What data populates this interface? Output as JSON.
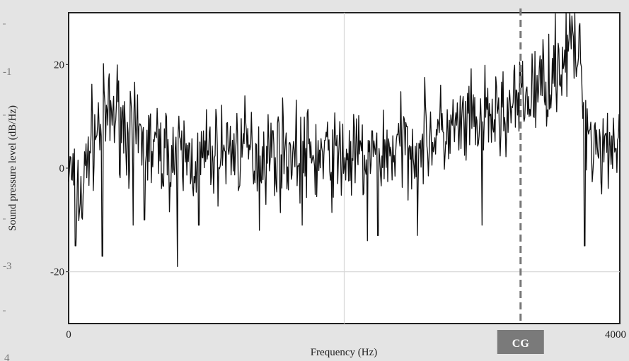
{
  "chart_data": {
    "type": "line",
    "title": "",
    "xlabel": "Frequency (Hz)",
    "ylabel": "Sound pressure level (dB/Hz)",
    "xlim": [
      0,
      4000
    ],
    "ylim": [
      -30,
      30
    ],
    "x_ticks": [
      {
        "value": 0,
        "label": "0"
      },
      {
        "value": 4000,
        "label": "4000"
      }
    ],
    "y_ticks": [
      {
        "value": 20,
        "label": "20"
      },
      {
        "value": 0,
        "label": "0"
      },
      {
        "value": -20,
        "label": "-20"
      }
    ],
    "gridlines": {
      "x": [
        2000
      ],
      "y": [
        -20
      ]
    },
    "left_edge_labels": [
      "-1",
      "-3",
      "4"
    ],
    "series": [
      {
        "color": "#111111",
        "envelope": [
          {
            "x": 0,
            "y": 0
          },
          {
            "x": 40,
            "y": -3
          },
          {
            "x": 100,
            "y": -6
          },
          {
            "x": 150,
            "y": 5
          },
          {
            "x": 250,
            "y": 9
          },
          {
            "x": 350,
            "y": 11
          },
          {
            "x": 450,
            "y": 6
          },
          {
            "x": 600,
            "y": 4
          },
          {
            "x": 800,
            "y": 2
          },
          {
            "x": 1000,
            "y": 2
          },
          {
            "x": 1200,
            "y": 4
          },
          {
            "x": 1400,
            "y": 3
          },
          {
            "x": 1600,
            "y": 3
          },
          {
            "x": 1800,
            "y": 2
          },
          {
            "x": 2000,
            "y": 2
          },
          {
            "x": 2200,
            "y": 2
          },
          {
            "x": 2400,
            "y": 4
          },
          {
            "x": 2600,
            "y": 6
          },
          {
            "x": 2800,
            "y": 7
          },
          {
            "x": 3000,
            "y": 9
          },
          {
            "x": 3200,
            "y": 11
          },
          {
            "x": 3400,
            "y": 15
          },
          {
            "x": 3550,
            "y": 20
          },
          {
            "x": 3650,
            "y": 24
          },
          {
            "x": 3700,
            "y": 22
          },
          {
            "x": 3760,
            "y": 8
          },
          {
            "x": 3850,
            "y": 4
          },
          {
            "x": 4000,
            "y": 6
          }
        ],
        "dips": [
          {
            "x": 50,
            "y": -15
          },
          {
            "x": 245,
            "y": -17
          },
          {
            "x": 470,
            "y": -11
          },
          {
            "x": 550,
            "y": -10
          },
          {
            "x": 790,
            "y": -19
          },
          {
            "x": 945,
            "y": -11
          },
          {
            "x": 1385,
            "y": -12
          },
          {
            "x": 1695,
            "y": -11
          },
          {
            "x": 2170,
            "y": -14
          },
          {
            "x": 2245,
            "y": -13
          },
          {
            "x": 2530,
            "y": -13
          },
          {
            "x": 3000,
            "y": -11
          },
          {
            "x": 3745,
            "y": -15
          }
        ]
      }
    ],
    "annotations": [
      {
        "type": "vline",
        "x": 3280,
        "style": "dashed",
        "color": "#777777",
        "label": "CG"
      }
    ]
  }
}
